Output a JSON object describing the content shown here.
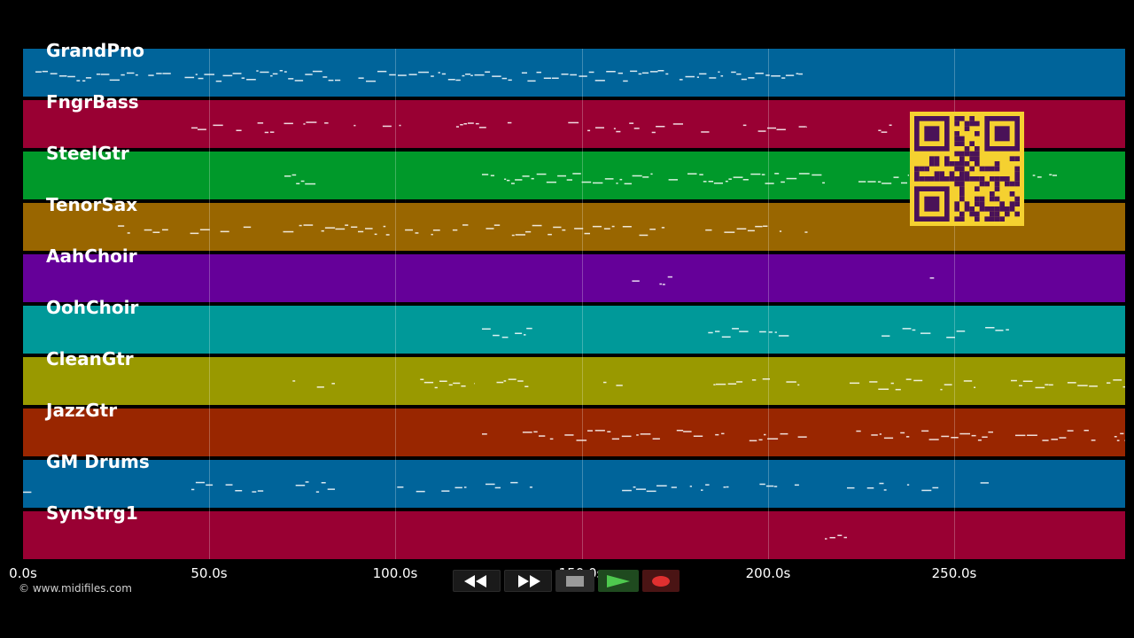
{
  "tracks": [
    {
      "name": "GrandPno",
      "color": "#00649a"
    },
    {
      "name": "FngrBass",
      "color": "#990033"
    },
    {
      "name": "SteelGtr",
      "color": "#00992a"
    },
    {
      "name": "TenorSax",
      "color": "#996600"
    },
    {
      "name": "AahChoir",
      "color": "#650099"
    },
    {
      "name": "OohChoir",
      "color": "#009999"
    },
    {
      "name": "CleanGtr",
      "color": "#999900"
    },
    {
      "name": "JazzGtr",
      "color": "#992600"
    },
    {
      "name": "GM Drums",
      "color": "#00649a"
    },
    {
      "name": "SynStrg1",
      "color": "#990033"
    }
  ],
  "timeline": {
    "ticks": [
      "0.0s",
      "50.0s",
      "100.0s",
      "150.0s",
      "200.0s",
      "250.0s"
    ],
    "tick_values": [
      0,
      50,
      100,
      150,
      200,
      250
    ],
    "total_seconds": 295.5
  },
  "copyright": "© www.midifiles.com",
  "transport": {
    "rewind": "rewind-icon",
    "fast_forward": "fast-forward-icon",
    "stop": "stop-icon",
    "play": "play-icon",
    "record": "record-icon"
  },
  "qr_code": "qr-code"
}
